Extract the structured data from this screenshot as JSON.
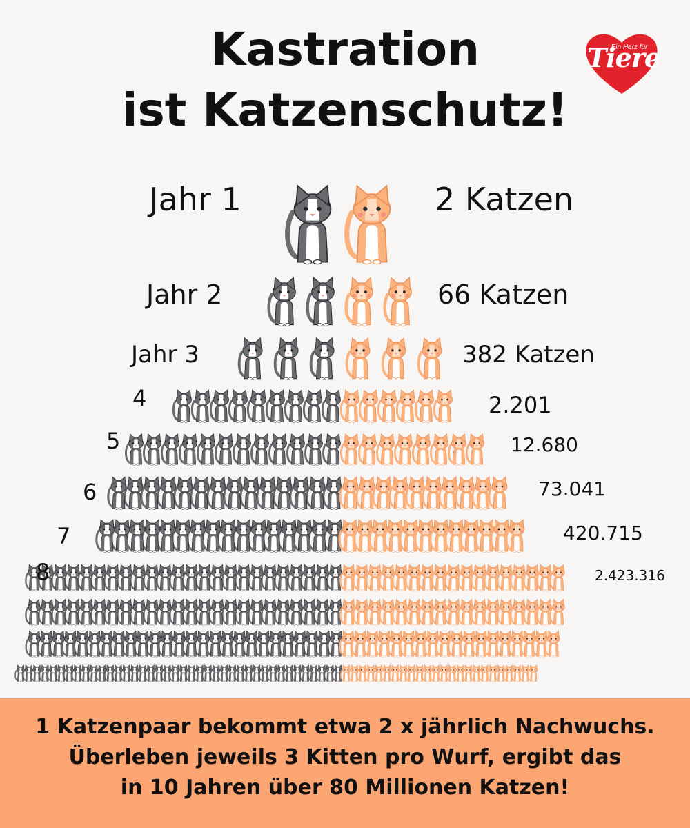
{
  "title": {
    "line1": "Kastration",
    "line2": "ist Katzenschutz!"
  },
  "logo": {
    "small_text": "Ein Herz für",
    "big_text": "Tiere",
    "color": "#e3232c"
  },
  "rows": [
    {
      "label": "Jahr 1",
      "count": "2 Katzen"
    },
    {
      "label": "Jahr 2",
      "count": "66 Katzen"
    },
    {
      "label": "Jahr 3",
      "count": "382 Katzen"
    },
    {
      "label": "4",
      "count": "2.201"
    },
    {
      "label": "5",
      "count": "12.680"
    },
    {
      "label": "6",
      "count": "73.041"
    },
    {
      "label": "7",
      "count": "420.715"
    },
    {
      "label": "8",
      "count": "2.423.316"
    }
  ],
  "footer": {
    "line1": "1 Katzenpaar bekommt etwa 2 x jährlich Nachwuchs.",
    "line2": "Überleben jeweils 3 Kitten pro Wurf, ergibt das",
    "line3": "in 10 Jahren über 80 Millionen Katzen!"
  },
  "colors": {
    "grey_cat": "#6b6b70",
    "orange_cat": "#fbb27d",
    "footer_bg": "#fba572"
  },
  "icons": {
    "grey_cat": "grey-cat-icon",
    "orange_cat": "orange-cat-icon",
    "logo": "heart-logo-icon"
  }
}
